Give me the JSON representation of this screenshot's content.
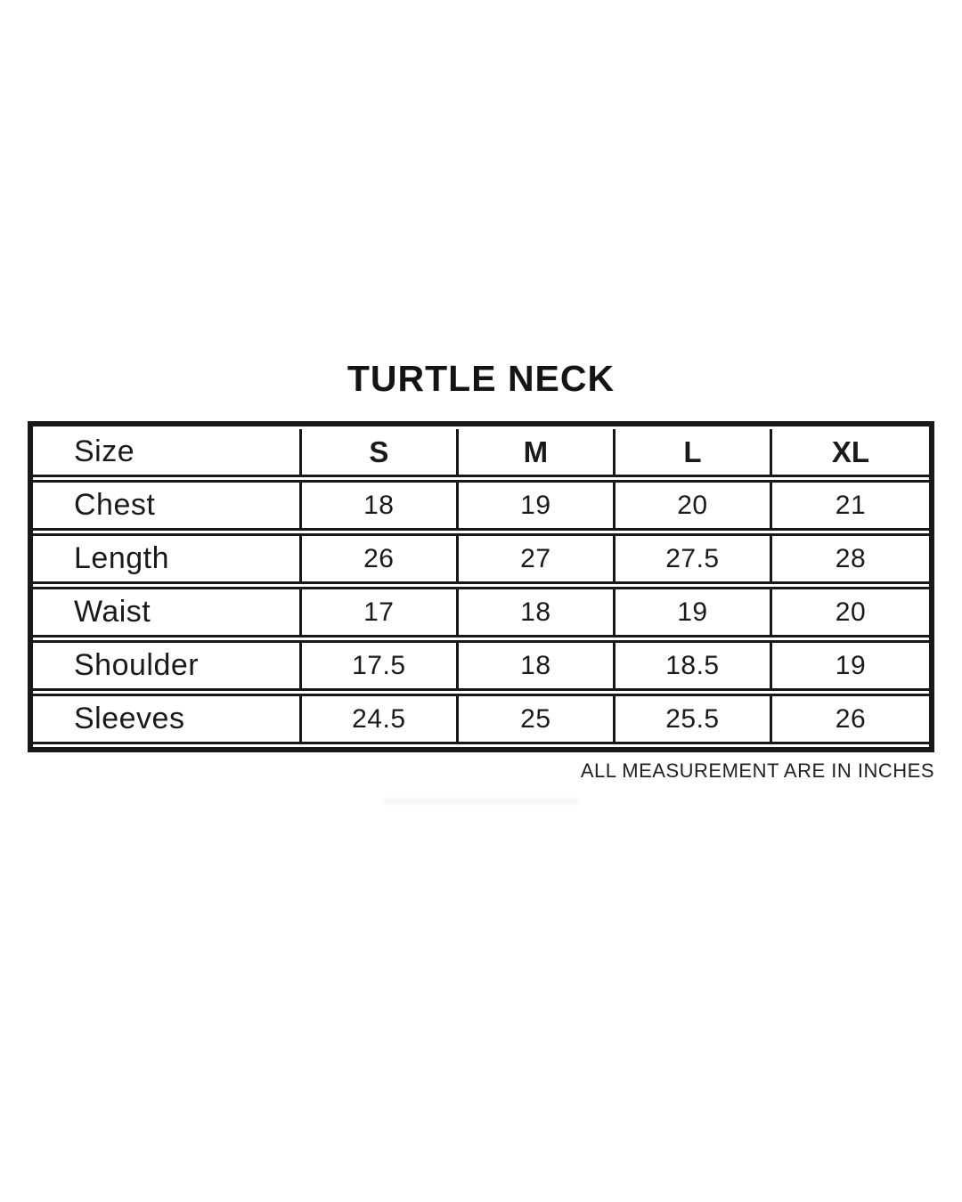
{
  "title": "TURTLE NECK",
  "table": {
    "columns": [
      "Size",
      "S",
      "M",
      "L",
      "XL"
    ],
    "rows": [
      {
        "label": "Chest",
        "values": [
          "18",
          "19",
          "20",
          "21"
        ]
      },
      {
        "label": "Length",
        "values": [
          "26",
          "27",
          "27.5",
          "28"
        ]
      },
      {
        "label": "Waist",
        "values": [
          "17",
          "18",
          "19",
          "20"
        ]
      },
      {
        "label": "Shoulder",
        "values": [
          "17.5",
          "18",
          "18.5",
          "19"
        ]
      },
      {
        "label": "Sleeves",
        "values": [
          "24.5",
          "25",
          "25.5",
          "26"
        ]
      }
    ]
  },
  "footer": {
    "note": "ALL MEASUREMENT ARE IN INCHES"
  },
  "colors": {
    "background": "#ffffff",
    "text": "#1a1a1a",
    "border": "#181818"
  },
  "chart_data": {
    "type": "table",
    "title": "TURTLE NECK",
    "columns": [
      "Size",
      "S",
      "M",
      "L",
      "XL"
    ],
    "rows": [
      [
        "Chest",
        18,
        19,
        20,
        21
      ],
      [
        "Length",
        26,
        27,
        27.5,
        28
      ],
      [
        "Waist",
        17,
        18,
        19,
        20
      ],
      [
        "Shoulder",
        17.5,
        18,
        18.5,
        19
      ],
      [
        "Sleeves",
        24.5,
        25,
        25.5,
        26
      ]
    ],
    "note": "ALL MEASUREMENT ARE IN INCHES"
  }
}
